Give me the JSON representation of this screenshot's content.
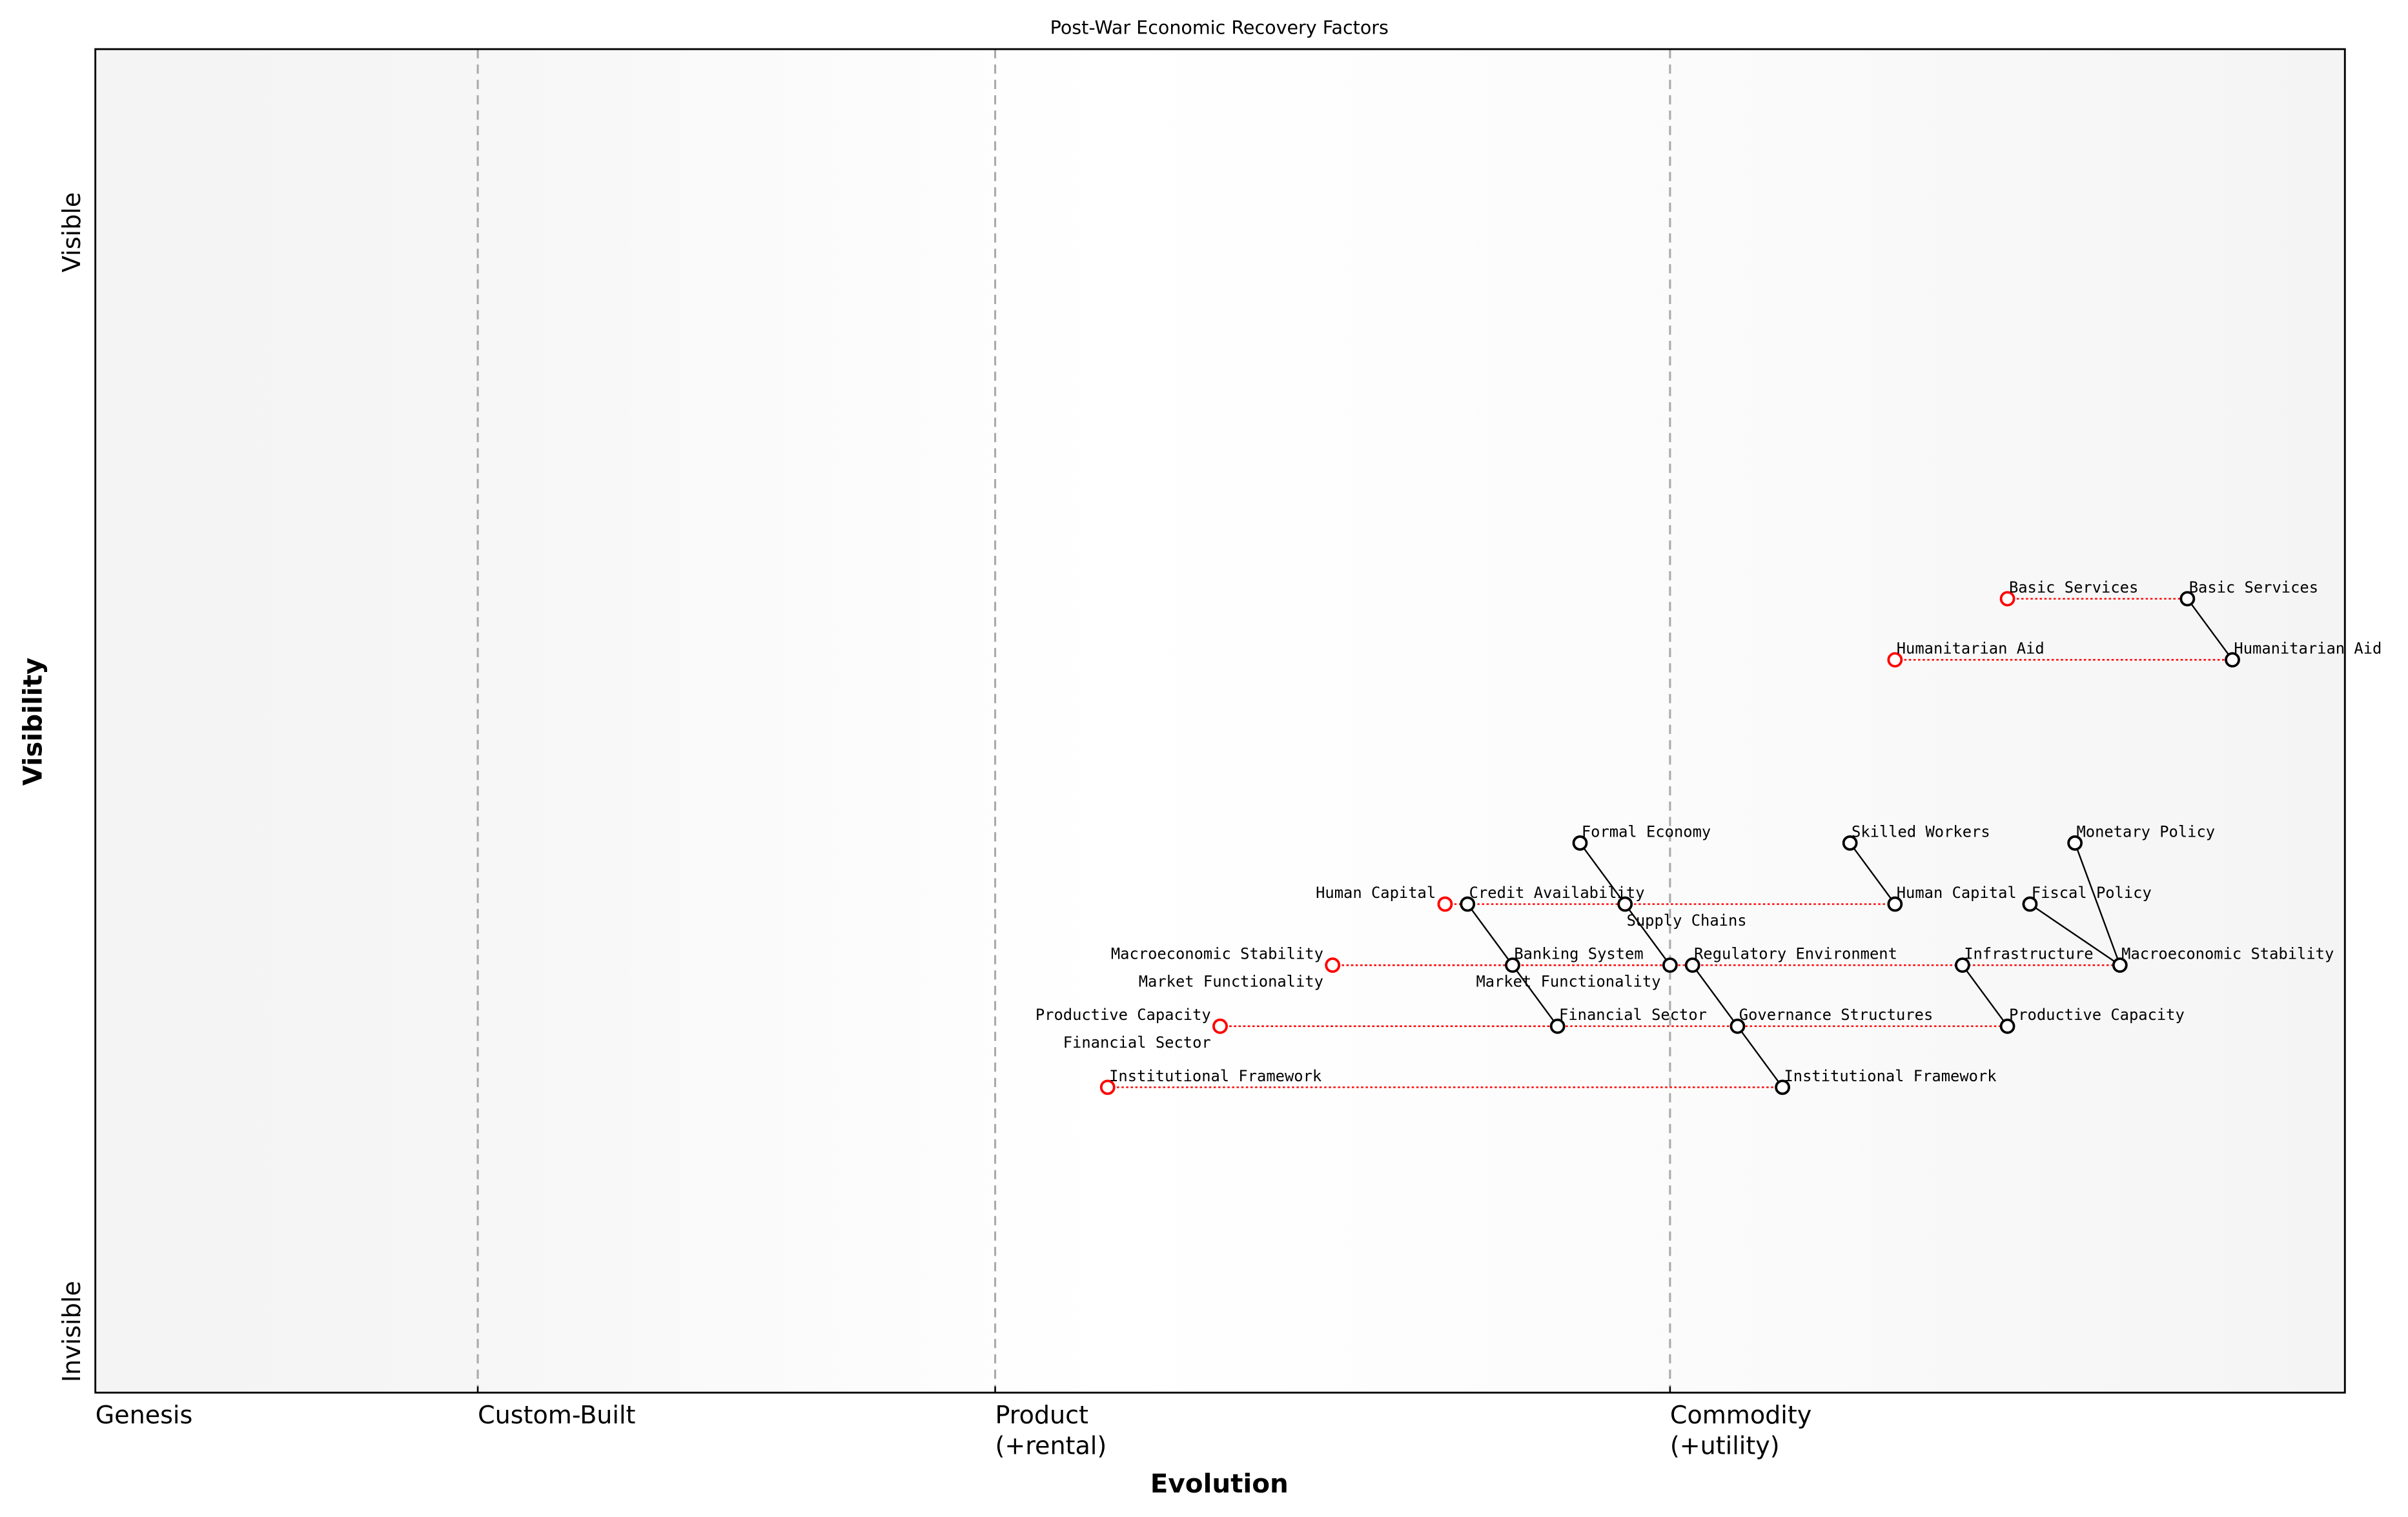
{
  "chart_data": {
    "type": "scatter",
    "subtype": "wardley-map",
    "title": "Post-War Economic Recovery Factors",
    "xlabel": "Evolution",
    "ylabel": "Visibility",
    "xlim": [
      0,
      1
    ],
    "ylim": [
      0,
      1.1
    ],
    "grid": false,
    "x_stages": [
      {
        "label": "Genesis",
        "x": 0
      },
      {
        "label": "Custom-Built",
        "x": 0.17
      },
      {
        "label": "Product\n(+rental)",
        "x": 0.4
      },
      {
        "label": "Commodity\n(+utility)",
        "x": 0.7
      }
    ],
    "y_ticks": [
      {
        "label": "Invisible",
        "y": 0.05
      },
      {
        "label": "Visible",
        "y": 0.95
      }
    ],
    "colors": {
      "current": "#000000",
      "past": "#ff0000",
      "stage_lines": "#aaaaaa",
      "background_edge": "#f4f4f4",
      "background_center": "#ffffff"
    },
    "components": [
      {
        "name": "Basic Services",
        "x": 0.93,
        "y": 0.65,
        "past_x": 0.85
      },
      {
        "name": "Humanitarian Aid",
        "x": 0.95,
        "y": 0.6,
        "past_x": 0.8
      },
      {
        "name": "Formal Economy",
        "x": 0.66,
        "y": 0.45
      },
      {
        "name": "Skilled Workers",
        "x": 0.78,
        "y": 0.45
      },
      {
        "name": "Monetary Policy",
        "x": 0.88,
        "y": 0.45
      },
      {
        "name": "Human Capital",
        "x": 0.8,
        "y": 0.4,
        "past_x": 0.6
      },
      {
        "name": "Credit Availability",
        "x": 0.61,
        "y": 0.4
      },
      {
        "name": "Supply Chains",
        "x": 0.68,
        "y": 0.4
      },
      {
        "name": "Fiscal Policy",
        "x": 0.86,
        "y": 0.4
      },
      {
        "name": "Macroeconomic Stability",
        "x": 0.9,
        "y": 0.35,
        "past_x": 0.55
      },
      {
        "name": "Market Functionality",
        "x": 0.7,
        "y": 0.35,
        "past_x": 0.55
      },
      {
        "name": "Banking System",
        "x": 0.63,
        "y": 0.35
      },
      {
        "name": "Regulatory Environment",
        "x": 0.71,
        "y": 0.35
      },
      {
        "name": "Infrastructure",
        "x": 0.83,
        "y": 0.35
      },
      {
        "name": "Productive Capacity",
        "x": 0.85,
        "y": 0.3,
        "past_x": 0.5
      },
      {
        "name": "Financial Sector",
        "x": 0.65,
        "y": 0.3,
        "past_x": 0.5
      },
      {
        "name": "Governance Structures",
        "x": 0.73,
        "y": 0.3
      },
      {
        "name": "Institutional Framework",
        "x": 0.75,
        "y": 0.25,
        "past_x": 0.45
      }
    ],
    "links": [
      [
        "Basic Services",
        "Humanitarian Aid"
      ],
      [
        "Formal Economy",
        "Supply Chains"
      ],
      [
        "Supply Chains",
        "Market Functionality"
      ],
      [
        "Credit Availability",
        "Banking System"
      ],
      [
        "Banking System",
        "Financial Sector"
      ],
      [
        "Regulatory Environment",
        "Governance Structures"
      ],
      [
        "Governance Structures",
        "Institutional Framework"
      ],
      [
        "Skilled Workers",
        "Human Capital"
      ],
      [
        "Fiscal Policy",
        "Macroeconomic Stability"
      ],
      [
        "Monetary Policy",
        "Macroeconomic Stability"
      ],
      [
        "Infrastructure",
        "Productive Capacity"
      ]
    ]
  }
}
